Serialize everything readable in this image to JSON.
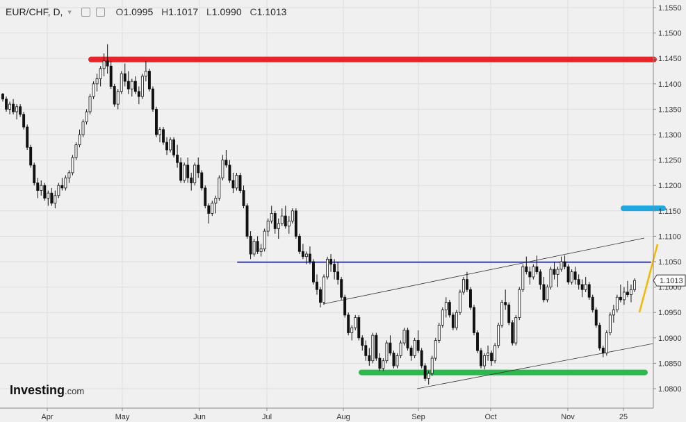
{
  "header": {
    "symbol": "EUR/CHF, D,",
    "dropdown": "▾",
    "open_label": "O",
    "open": "1.0995",
    "high_label": "H",
    "high": "1.1017",
    "low_label": "L",
    "low": "1.0990",
    "close_label": "C",
    "close": "1.1013"
  },
  "logo": {
    "name": "Investing",
    "domain": ".com"
  },
  "chart_data": {
    "type": "candlestick",
    "y_ticks": [
      "1.1550",
      "1.1500",
      "1.1450",
      "1.1400",
      "1.1350",
      "1.1300",
      "1.1250",
      "1.1200",
      "1.1150",
      "1.1100",
      "1.1050",
      "1.1000",
      "1.0950",
      "1.0900",
      "1.0850",
      "1.0800"
    ],
    "ylim": [
      1.0775,
      1.1575
    ],
    "x_ticks": [
      "Apr",
      "May",
      "Jun",
      "Jul",
      "Aug",
      "Sep",
      "Oct",
      "Nov",
      "25"
    ],
    "last_price": "1.1013",
    "horizontal_levels": [
      {
        "value": 1.1448,
        "color": "#e8242b"
      },
      {
        "value": 1.1155,
        "color": "#1fa8e0"
      },
      {
        "value": 1.1049,
        "color": "#3b3fc4"
      },
      {
        "value": 1.0832,
        "color": "#2db84d"
      }
    ],
    "candles": [
      [
        1.138,
        1.1382,
        1.1365,
        1.137
      ],
      [
        1.137,
        1.1375,
        1.1345,
        1.135
      ],
      [
        1.135,
        1.1365,
        1.134,
        1.136
      ],
      [
        1.136,
        1.137,
        1.134,
        1.1345
      ],
      [
        1.1345,
        1.136,
        1.133,
        1.1355
      ],
      [
        1.1355,
        1.136,
        1.1335,
        1.134
      ],
      [
        1.134,
        1.1345,
        1.131,
        1.1315
      ],
      [
        1.1315,
        1.132,
        1.127,
        1.1275
      ],
      [
        1.1275,
        1.128,
        1.1235,
        1.124
      ],
      [
        1.124,
        1.1245,
        1.12,
        1.1205
      ],
      [
        1.1205,
        1.1215,
        1.1175,
        1.119
      ],
      [
        1.119,
        1.121,
        1.118,
        1.12
      ],
      [
        1.12,
        1.1205,
        1.117,
        1.1175
      ],
      [
        1.1175,
        1.119,
        1.116,
        1.1185
      ],
      [
        1.1185,
        1.1195,
        1.116,
        1.1165
      ],
      [
        1.1165,
        1.119,
        1.1155,
        1.118
      ],
      [
        1.118,
        1.1205,
        1.1175,
        1.12
      ],
      [
        1.12,
        1.1215,
        1.119,
        1.1195
      ],
      [
        1.1195,
        1.122,
        1.119,
        1.1215
      ],
      [
        1.1215,
        1.123,
        1.1205,
        1.1225
      ],
      [
        1.1225,
        1.126,
        1.122,
        1.1255
      ],
      [
        1.1255,
        1.1285,
        1.125,
        1.128
      ],
      [
        1.128,
        1.131,
        1.1275,
        1.13
      ],
      [
        1.13,
        1.133,
        1.1295,
        1.1325
      ],
      [
        1.1325,
        1.135,
        1.132,
        1.1345
      ],
      [
        1.1345,
        1.138,
        1.134,
        1.1375
      ],
      [
        1.1375,
        1.1405,
        1.137,
        1.14
      ],
      [
        1.14,
        1.142,
        1.1385,
        1.141
      ],
      [
        1.141,
        1.1435,
        1.1395,
        1.143
      ],
      [
        1.143,
        1.146,
        1.1415,
        1.1445
      ],
      [
        1.1445,
        1.1478,
        1.142,
        1.1435
      ],
      [
        1.1435,
        1.1445,
        1.139,
        1.1395
      ],
      [
        1.1395,
        1.14,
        1.1355,
        1.136
      ],
      [
        1.136,
        1.139,
        1.135,
        1.1385
      ],
      [
        1.1385,
        1.1425,
        1.138,
        1.142
      ],
      [
        1.142,
        1.144,
        1.1395,
        1.1405
      ],
      [
        1.1405,
        1.1425,
        1.138,
        1.139
      ],
      [
        1.139,
        1.141,
        1.1375,
        1.1405
      ],
      [
        1.1405,
        1.1415,
        1.138,
        1.1385
      ],
      [
        1.1385,
        1.1395,
        1.136,
        1.1375
      ],
      [
        1.1375,
        1.142,
        1.137,
        1.1415
      ],
      [
        1.1415,
        1.1445,
        1.1405,
        1.1425
      ],
      [
        1.1425,
        1.143,
        1.1385,
        1.139
      ],
      [
        1.139,
        1.1395,
        1.1345,
        1.135
      ],
      [
        1.135,
        1.1355,
        1.1295,
        1.13
      ],
      [
        1.13,
        1.1315,
        1.1285,
        1.131
      ],
      [
        1.131,
        1.1315,
        1.128,
        1.1285
      ],
      [
        1.1285,
        1.1295,
        1.126,
        1.127
      ],
      [
        1.127,
        1.1295,
        1.1265,
        1.129
      ],
      [
        1.129,
        1.1295,
        1.1255,
        1.126
      ],
      [
        1.126,
        1.128,
        1.1235,
        1.1245
      ],
      [
        1.1245,
        1.1255,
        1.1205,
        1.121
      ],
      [
        1.121,
        1.1245,
        1.1205,
        1.124
      ],
      [
        1.124,
        1.1255,
        1.1205,
        1.1215
      ],
      [
        1.1215,
        1.1225,
        1.119,
        1.1205
      ],
      [
        1.1205,
        1.1245,
        1.12,
        1.124
      ],
      [
        1.124,
        1.1255,
        1.1215,
        1.1225
      ],
      [
        1.1225,
        1.123,
        1.119,
        1.1195
      ],
      [
        1.1195,
        1.12,
        1.1155,
        1.116
      ],
      [
        1.116,
        1.1165,
        1.1125,
        1.1145
      ],
      [
        1.1145,
        1.117,
        1.114,
        1.1165
      ],
      [
        1.1165,
        1.118,
        1.1145,
        1.1175
      ],
      [
        1.1175,
        1.122,
        1.117,
        1.1215
      ],
      [
        1.1215,
        1.126,
        1.121,
        1.125
      ],
      [
        1.125,
        1.127,
        1.1235,
        1.124
      ],
      [
        1.124,
        1.125,
        1.1205,
        1.121
      ],
      [
        1.121,
        1.1225,
        1.1185,
        1.1195
      ],
      [
        1.1195,
        1.1225,
        1.119,
        1.122
      ],
      [
        1.122,
        1.1225,
        1.1185,
        1.119
      ],
      [
        1.119,
        1.12,
        1.1155,
        1.116
      ],
      [
        1.116,
        1.1165,
        1.1095,
        1.11
      ],
      [
        1.11,
        1.111,
        1.1055,
        1.1065
      ],
      [
        1.1065,
        1.1095,
        1.106,
        1.109
      ],
      [
        1.109,
        1.11,
        1.1065,
        1.107
      ],
      [
        1.107,
        1.1085,
        1.106,
        1.1075
      ],
      [
        1.1075,
        1.1115,
        1.107,
        1.111
      ],
      [
        1.111,
        1.1135,
        1.11,
        1.113
      ],
      [
        1.113,
        1.116,
        1.1125,
        1.1145
      ],
      [
        1.1145,
        1.115,
        1.1105,
        1.1115
      ],
      [
        1.1115,
        1.1135,
        1.1095,
        1.1125
      ],
      [
        1.1125,
        1.1155,
        1.112,
        1.114
      ],
      [
        1.114,
        1.116,
        1.1115,
        1.112
      ],
      [
        1.112,
        1.114,
        1.1105,
        1.113
      ],
      [
        1.113,
        1.1155,
        1.1125,
        1.115
      ],
      [
        1.115,
        1.1155,
        1.1095,
        1.11
      ],
      [
        1.11,
        1.1105,
        1.1065,
        1.107
      ],
      [
        1.107,
        1.1085,
        1.1055,
        1.106
      ],
      [
        1.106,
        1.107,
        1.1045,
        1.1065
      ],
      [
        1.1065,
        1.108,
        1.1045,
        1.105
      ],
      [
        1.105,
        1.1055,
        1.1005,
        1.101
      ],
      [
        1.101,
        1.1025,
        1.0985,
        1.0995
      ],
      [
        1.0995,
        1.1,
        1.096,
        1.097
      ],
      [
        1.097,
        1.1025,
        1.0965,
        1.102
      ],
      [
        1.102,
        1.106,
        1.1015,
        1.1055
      ],
      [
        1.1055,
        1.1065,
        1.103,
        1.1045
      ],
      [
        1.1045,
        1.1055,
        1.1015,
        1.103
      ],
      [
        1.103,
        1.105,
        1.1005,
        1.1015
      ],
      [
        1.1015,
        1.102,
        1.0975,
        1.098
      ],
      [
        1.098,
        1.0985,
        1.094,
        1.0945
      ],
      [
        1.0945,
        1.095,
        1.0905,
        1.091
      ],
      [
        1.091,
        1.0925,
        1.0895,
        1.092
      ],
      [
        1.092,
        1.0945,
        1.0915,
        1.094
      ],
      [
        1.094,
        1.0945,
        1.0895,
        1.09
      ],
      [
        1.09,
        1.0905,
        1.0875,
        1.0885
      ],
      [
        1.0885,
        1.0895,
        1.0855,
        1.0865
      ],
      [
        1.0865,
        1.088,
        1.0845,
        1.0855
      ],
      [
        1.0855,
        1.091,
        1.085,
        1.0905
      ],
      [
        1.0905,
        1.091,
        1.0855,
        1.086
      ],
      [
        1.086,
        1.087,
        1.0835,
        1.084
      ],
      [
        1.084,
        1.086,
        1.0835,
        1.0855
      ],
      [
        1.0855,
        1.0895,
        1.085,
        1.089
      ],
      [
        1.089,
        1.0905,
        1.0865,
        1.087
      ],
      [
        1.087,
        1.0875,
        1.084,
        1.0845
      ],
      [
        1.0845,
        1.087,
        1.084,
        1.0865
      ],
      [
        1.0865,
        1.0895,
        1.086,
        1.089
      ],
      [
        1.089,
        1.092,
        1.0885,
        1.0915
      ],
      [
        1.0915,
        1.092,
        1.0875,
        1.088
      ],
      [
        1.088,
        1.0885,
        1.0855,
        1.0865
      ],
      [
        1.0865,
        1.09,
        1.086,
        1.0895
      ],
      [
        1.0895,
        1.0915,
        1.087,
        1.0875
      ],
      [
        1.0875,
        1.088,
        1.084,
        1.0845
      ],
      [
        1.0845,
        1.085,
        1.0815,
        1.082
      ],
      [
        1.082,
        1.0835,
        1.0808,
        1.083
      ],
      [
        1.083,
        1.0865,
        1.0825,
        1.086
      ],
      [
        1.086,
        1.09,
        1.0855,
        1.0895
      ],
      [
        1.0895,
        1.093,
        1.089,
        1.0925
      ],
      [
        1.0925,
        1.096,
        1.092,
        1.0955
      ],
      [
        1.0955,
        1.098,
        1.094,
        1.097
      ],
      [
        1.097,
        1.0975,
        1.094,
        1.0945
      ],
      [
        1.0945,
        1.095,
        1.0915,
        1.092
      ],
      [
        1.092,
        1.0955,
        1.0915,
        1.095
      ],
      [
        1.095,
        1.0995,
        1.0945,
        1.099
      ],
      [
        1.099,
        1.102,
        1.0985,
        1.1015
      ],
      [
        1.1015,
        1.103,
        1.099,
        1.0995
      ],
      [
        1.0995,
        1.1,
        1.0955,
        1.096
      ],
      [
        1.096,
        1.0965,
        1.0905,
        1.091
      ],
      [
        1.091,
        1.0915,
        1.087,
        1.0875
      ],
      [
        1.0875,
        1.088,
        1.084,
        1.0845
      ],
      [
        1.0845,
        1.087,
        1.0838,
        1.0865
      ],
      [
        1.0865,
        1.0885,
        1.0855,
        1.087
      ],
      [
        1.087,
        1.0875,
        1.0845,
        1.0855
      ],
      [
        1.0855,
        1.089,
        1.085,
        1.0885
      ],
      [
        1.0885,
        1.093,
        1.088,
        1.0925
      ],
      [
        1.0925,
        1.0975,
        1.092,
        1.097
      ],
      [
        1.097,
        1.0995,
        1.0955,
        1.0965
      ],
      [
        1.0965,
        1.097,
        1.0925,
        1.093
      ],
      [
        1.093,
        1.0935,
        1.0885,
        1.089
      ],
      [
        1.089,
        1.0945,
        1.0885,
        1.094
      ],
      [
        1.094,
        1.1,
        1.0935,
        1.0995
      ],
      [
        1.0995,
        1.1045,
        1.099,
        1.104
      ],
      [
        1.104,
        1.106,
        1.1025,
        1.103
      ],
      [
        1.103,
        1.104,
        1.1005,
        1.102
      ],
      [
        1.102,
        1.1045,
        1.1015,
        1.104
      ],
      [
        1.104,
        1.1062,
        1.1025,
        1.103
      ],
      [
        1.103,
        1.1035,
        1.0995,
        1.1005
      ],
      [
        1.1005,
        1.102,
        1.097,
        1.0975
      ],
      [
        1.0975,
        1.1005,
        1.097,
        1.1
      ],
      [
        1.1,
        1.104,
        1.0995,
        1.1035
      ],
      [
        1.1035,
        1.105,
        1.1015,
        1.1025
      ],
      [
        1.1025,
        1.104,
        1.1,
        1.1035
      ],
      [
        1.1035,
        1.106,
        1.103,
        1.105
      ],
      [
        1.105,
        1.1062,
        1.1035,
        1.104
      ],
      [
        1.104,
        1.1045,
        1.1005,
        1.101
      ],
      [
        1.101,
        1.1035,
        1.1005,
        1.103
      ],
      [
        1.103,
        1.104,
        1.1005,
        1.1015
      ],
      [
        1.1015,
        1.1025,
        1.0995,
        1.1005
      ],
      [
        1.1005,
        1.1015,
        1.098,
        1.0995
      ],
      [
        1.0995,
        1.102,
        1.099,
        1.1005
      ],
      [
        1.1005,
        1.101,
        1.0975,
        1.098
      ],
      [
        1.098,
        1.0985,
        1.095,
        1.0955
      ],
      [
        1.0955,
        1.096,
        1.092,
        1.0925
      ],
      [
        1.0925,
        1.093,
        1.0875,
        1.088
      ],
      [
        1.088,
        1.0885,
        1.0862,
        1.087
      ],
      [
        1.087,
        1.0915,
        1.0865,
        1.091
      ],
      [
        1.091,
        1.095,
        1.0905,
        1.0945
      ],
      [
        1.0945,
        1.0965,
        1.093,
        1.0955
      ],
      [
        1.0955,
        1.0985,
        1.095,
        1.098
      ],
      [
        1.098,
        1.1005,
        1.097,
        1.0975
      ],
      [
        1.0975,
        1.1,
        1.0965,
        1.099
      ],
      [
        1.099,
        1.1012,
        1.098,
        1.0985
      ],
      [
        1.0985,
        1.1005,
        1.097,
        1.0995
      ],
      [
        1.0995,
        1.1017,
        1.099,
        1.1013
      ]
    ]
  }
}
